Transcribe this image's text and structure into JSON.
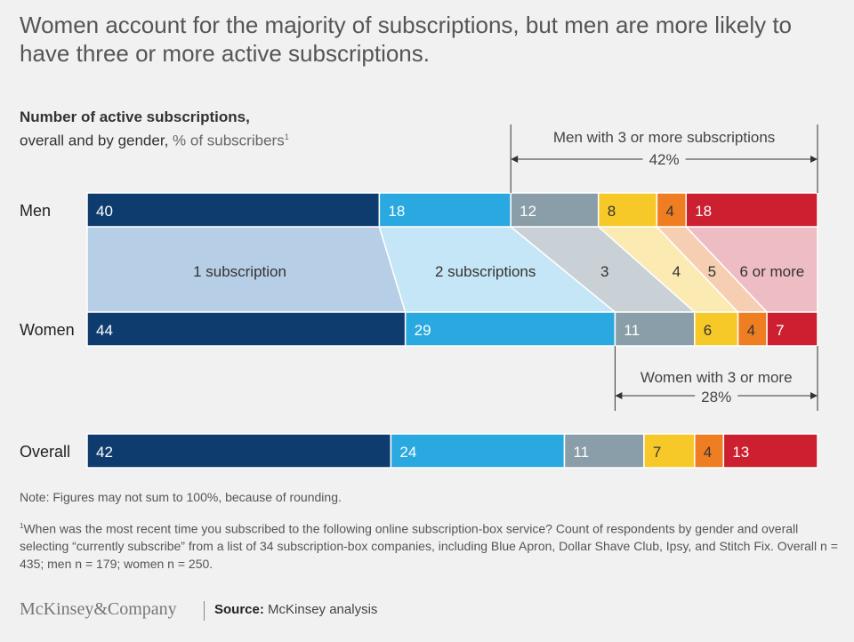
{
  "title": "Women account for the majority of subscriptions, but men are more likely to have three or more active subscriptions.",
  "subtitle": {
    "bold": "Number of active subscriptions,",
    "line2": "overall and by gender,",
    "unit": "% of subscribers",
    "footnote_mark": "1"
  },
  "chart_data": {
    "type": "bar",
    "orientation": "horizontal-stacked",
    "rows": [
      "Men",
      "Women",
      "Overall"
    ],
    "categories": [
      "1 subscription",
      "2 subscriptions",
      "3",
      "4",
      "5",
      "6 or more"
    ],
    "series": [
      {
        "row": "Men",
        "values": [
          40,
          18,
          12,
          8,
          4,
          18
        ]
      },
      {
        "row": "Women",
        "values": [
          44,
          29,
          11,
          6,
          4,
          7
        ]
      },
      {
        "row": "Overall",
        "values": [
          42,
          24,
          11,
          7,
          4,
          13
        ]
      }
    ],
    "colors": [
      "#0f3c6e",
      "#2aa8e0",
      "#8a9ea9",
      "#f7c928",
      "#ef7d22",
      "#cc1f2f"
    ],
    "band_colors": [
      "#b7cfe6",
      "#c5e6f6",
      "#c9d1d6",
      "#fbeab2",
      "#f6ceb2",
      "#eebdc3"
    ],
    "label_colors": [
      "#ffffff",
      "#ffffff",
      "#ffffff",
      "#333333",
      "#333333",
      "#ffffff"
    ],
    "annotations": {
      "men": {
        "label": "Men with 3 or more subscriptions",
        "value": "42%"
      },
      "women": {
        "label": "Women with 3 or more",
        "value": "28%"
      }
    }
  },
  "note": "Note: Figures may not sum to 100%, because of rounding.",
  "footnote": {
    "mark": "1",
    "text": "When was the most recent time you subscribed to the following online subscription-box service? Count of respondents by gender and overall selecting “currently subscribe” from a list of 34 subscription-box companies, including Blue Apron, Dollar Shave Club, Ipsy, and Stitch Fix. Overall n = 435; men n = 179; women n = 250."
  },
  "brand": "McKinsey&Company",
  "source": {
    "label": "Source:",
    "text": "McKinsey analysis"
  }
}
